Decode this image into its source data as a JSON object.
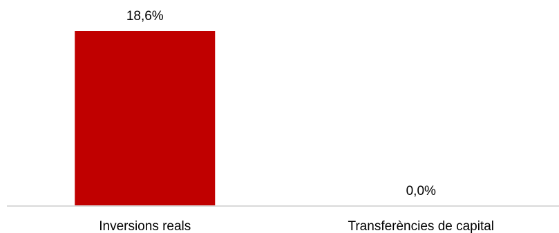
{
  "chart_data": {
    "type": "bar",
    "title": "",
    "categories": [
      "Inversions reals",
      "Transferències de capital"
    ],
    "values": [
      18.6,
      0.0
    ],
    "data_labels": [
      "18,6%",
      "0,0%"
    ],
    "ylim": [
      0,
      20
    ],
    "grid": false,
    "legend": "none",
    "colors": {
      "bar": "#c00000",
      "axis": "#d9d9d9"
    }
  }
}
